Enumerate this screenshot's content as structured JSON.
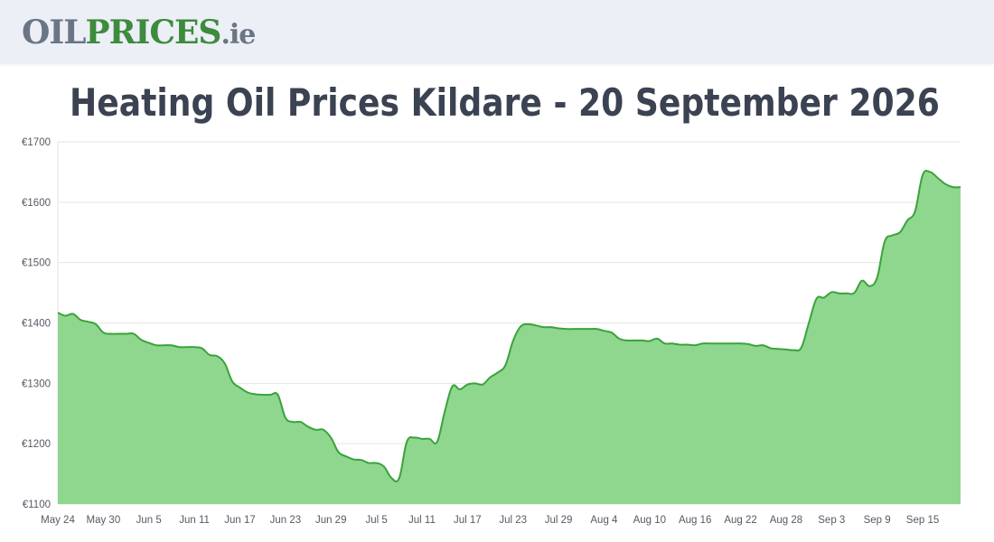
{
  "header": {
    "logo_part1": "OIL",
    "logo_part2": "PRICES",
    "logo_part3": ".ie"
  },
  "colors": {
    "brand_grey": "#6b7585",
    "brand_green": "#3d8b3d",
    "line": "#3aa33a",
    "fill": "#8fd68f"
  },
  "chart_data": {
    "type": "area",
    "title": "Heating Oil Prices Kildare - 20 September 2026",
    "xlabel": "",
    "ylabel": "",
    "ylim": [
      1100,
      1700
    ],
    "yticks": [
      "€1100",
      "€1200",
      "€1300",
      "€1400",
      "€1500",
      "€1600",
      "€1700"
    ],
    "xticks": [
      "May 24",
      "May 30",
      "Jun 5",
      "Jun 11",
      "Jun 17",
      "Jun 23",
      "Jun 29",
      "Jul 5",
      "Jul 11",
      "Jul 17",
      "Jul 23",
      "Jul 29",
      "Aug 4",
      "Aug 10",
      "Aug 16",
      "Aug 22",
      "Aug 28",
      "Sep 3",
      "Sep 9",
      "Sep 15"
    ],
    "grid": true,
    "series": [
      {
        "x": [
          0,
          1,
          2,
          3,
          4,
          5,
          6,
          7,
          8,
          9,
          10,
          11,
          12,
          13,
          14,
          15,
          16,
          17,
          18,
          19,
          20,
          21,
          22,
          23,
          24,
          25,
          26,
          27,
          28,
          29,
          30,
          31,
          32,
          33,
          34,
          35,
          36,
          37,
          38,
          39,
          40,
          41,
          42,
          43,
          44,
          45,
          46,
          47,
          48,
          49,
          50,
          51,
          52,
          53,
          54,
          55,
          56,
          57,
          58,
          59,
          60,
          61,
          62,
          63,
          64,
          65,
          66,
          67,
          68,
          69,
          70,
          71,
          72,
          73,
          74,
          75,
          76,
          77,
          78,
          79,
          80,
          81,
          82,
          83,
          84,
          85,
          86,
          87,
          88,
          89,
          90,
          91,
          92,
          93,
          94,
          95,
          96,
          97,
          98,
          99,
          100,
          101,
          102,
          103,
          104,
          105,
          106,
          107,
          108,
          109,
          110,
          111,
          112,
          113,
          114,
          115,
          116,
          117,
          118,
          119
        ],
        "values": [
          1417,
          1412,
          1415,
          1405,
          1402,
          1398,
          1384,
          1382,
          1382,
          1382,
          1382,
          1372,
          1367,
          1363,
          1363,
          1363,
          1360,
          1360,
          1360,
          1358,
          1347,
          1345,
          1333,
          1303,
          1293,
          1285,
          1282,
          1281,
          1281,
          1281,
          1243,
          1236,
          1236,
          1228,
          1223,
          1223,
          1210,
          1186,
          1179,
          1174,
          1173,
          1168,
          1168,
          1162,
          1143,
          1143,
          1203,
          1210,
          1208,
          1208,
          1203,
          1253,
          1295,
          1290,
          1298,
          1300,
          1298,
          1310,
          1318,
          1330,
          1370,
          1394,
          1398,
          1396,
          1393,
          1393,
          1391,
          1390,
          1390,
          1390,
          1390,
          1390,
          1387,
          1384,
          1374,
          1371,
          1371,
          1371,
          1370,
          1374,
          1366,
          1366,
          1364,
          1364,
          1363,
          1366,
          1366,
          1366,
          1366,
          1366,
          1366,
          1365,
          1362,
          1363,
          1358,
          1357,
          1356,
          1355,
          1359,
          1400,
          1440,
          1442,
          1451,
          1449,
          1449,
          1450,
          1470,
          1461,
          1475,
          1535,
          1545,
          1550,
          1570,
          1585,
          1645,
          1650,
          1640,
          1630,
          1625,
          1625
        ]
      }
    ]
  }
}
